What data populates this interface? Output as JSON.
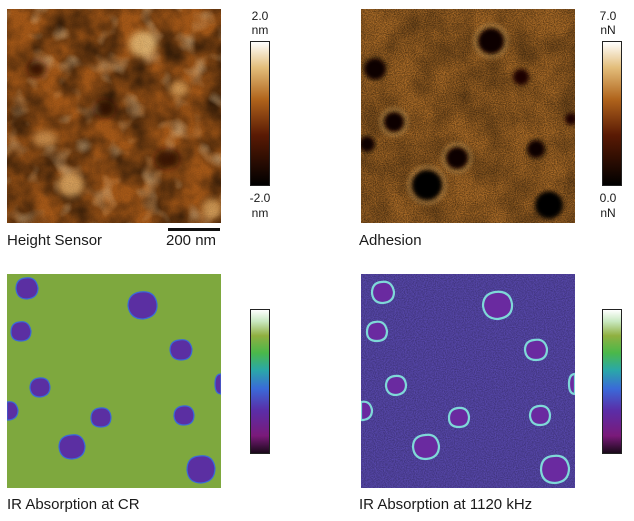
{
  "panels": [
    {
      "label": "Height Sensor",
      "colorbar": {
        "max": "2.0",
        "max_unit": "nm",
        "min": "-2.0",
        "min_unit": "nm"
      },
      "scale_bar": "200 nm",
      "colormap": "afm-hot"
    },
    {
      "label": "Adhesion",
      "colorbar": {
        "max": "7.0",
        "max_unit": "nN",
        "min": "0.0",
        "min_unit": "nN"
      },
      "colormap": "afm-hot"
    },
    {
      "label": "IR Absorption at CR",
      "colormap": "spectral"
    },
    {
      "label": "IR Absorption at 1120 kHz",
      "colormap": "spectral"
    }
  ],
  "colors": {
    "height_base": "#b0641c",
    "adhesion_base": "#a8641e",
    "ir_cr_background": "#7ea83e",
    "ir_domain": "#5b2fa2",
    "ir_1120_background": "#5a4ab0",
    "ring": "#7fd8d8"
  }
}
